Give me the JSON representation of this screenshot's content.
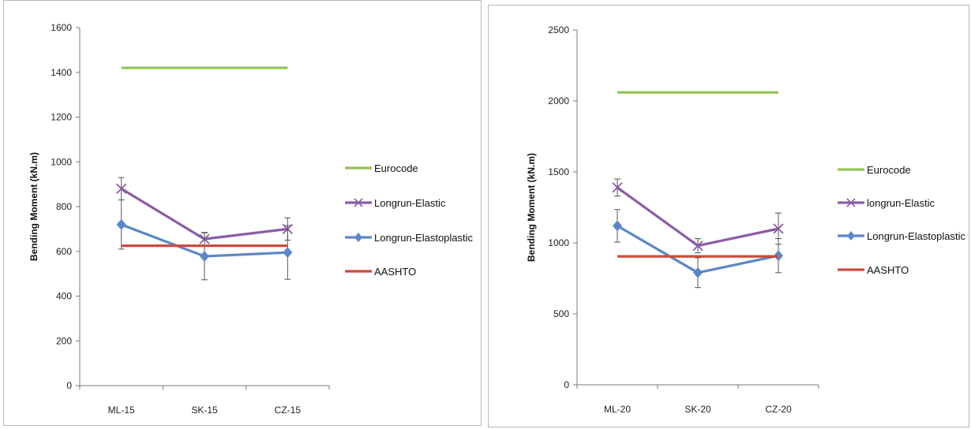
{
  "chart_data": [
    {
      "type": "line",
      "categories": [
        "ML-15",
        "SK-15",
        "CZ-15"
      ],
      "ylabel": "Bending Moment (kN.m)",
      "xlabel": "",
      "ylim": [
        0,
        1600
      ],
      "yticks": [
        0,
        200,
        400,
        600,
        800,
        1000,
        1200,
        1400,
        1600
      ],
      "legend_position": "right",
      "series": [
        {
          "name": "Eurocode",
          "color": "#92c353",
          "marker": "none",
          "values": [
            1420,
            1420,
            1420
          ]
        },
        {
          "name": "Longrun-Elastic",
          "color": "#8a5ca6",
          "marker": "x",
          "values": [
            880,
            655,
            700
          ],
          "errors": [
            50,
            30,
            50
          ]
        },
        {
          "name": "Longrun-Elastoplastic",
          "color": "#5b87c7",
          "marker": "diamond",
          "values": [
            720,
            578,
            595
          ],
          "errors": [
            110,
            105,
            120
          ]
        },
        {
          "name": "AASHTO",
          "color": "#cc4b3c",
          "marker": "none",
          "values": [
            625,
            625,
            625
          ]
        }
      ]
    },
    {
      "type": "line",
      "categories": [
        "ML-20",
        "SK-20",
        "CZ-20"
      ],
      "ylabel": "Bending Moment (kN.m)",
      "xlabel": "",
      "ylim": [
        0,
        2500
      ],
      "yticks": [
        0,
        500,
        1000,
        1500,
        2000,
        2500
      ],
      "legend_position": "right",
      "series": [
        {
          "name": "Eurocode",
          "color": "#92c353",
          "marker": "none",
          "values": [
            2060,
            2060,
            2060
          ]
        },
        {
          "name": "longrun-Elastic",
          "color": "#8a5ca6",
          "marker": "x",
          "values": [
            1390,
            980,
            1100
          ],
          "errors": [
            60,
            50,
            110
          ]
        },
        {
          "name": "Longrun-Elastoplastic",
          "color": "#5b87c7",
          "marker": "diamond",
          "values": [
            1120,
            790,
            910
          ],
          "errors": [
            115,
            105,
            120
          ]
        },
        {
          "name": "AASHTO",
          "color": "#cc4b3c",
          "marker": "none",
          "values": [
            905,
            905,
            905
          ]
        }
      ]
    }
  ]
}
